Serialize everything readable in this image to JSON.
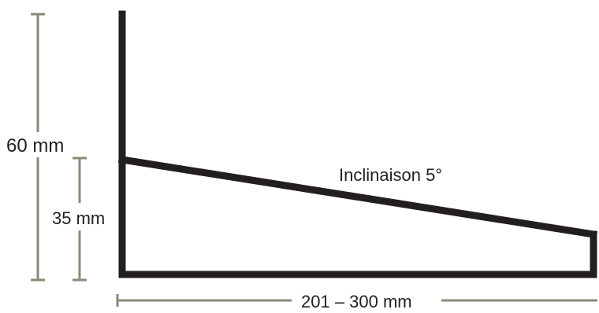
{
  "diagram": {
    "height_total_label": "60 mm",
    "height_low_label": "35 mm",
    "incline_label": "Inclinaison 5°",
    "length_label": "201 – 300 mm",
    "colors": {
      "profile": "#231f20",
      "dimension_lines": "#8a8a78",
      "text": "#231f20"
    }
  }
}
